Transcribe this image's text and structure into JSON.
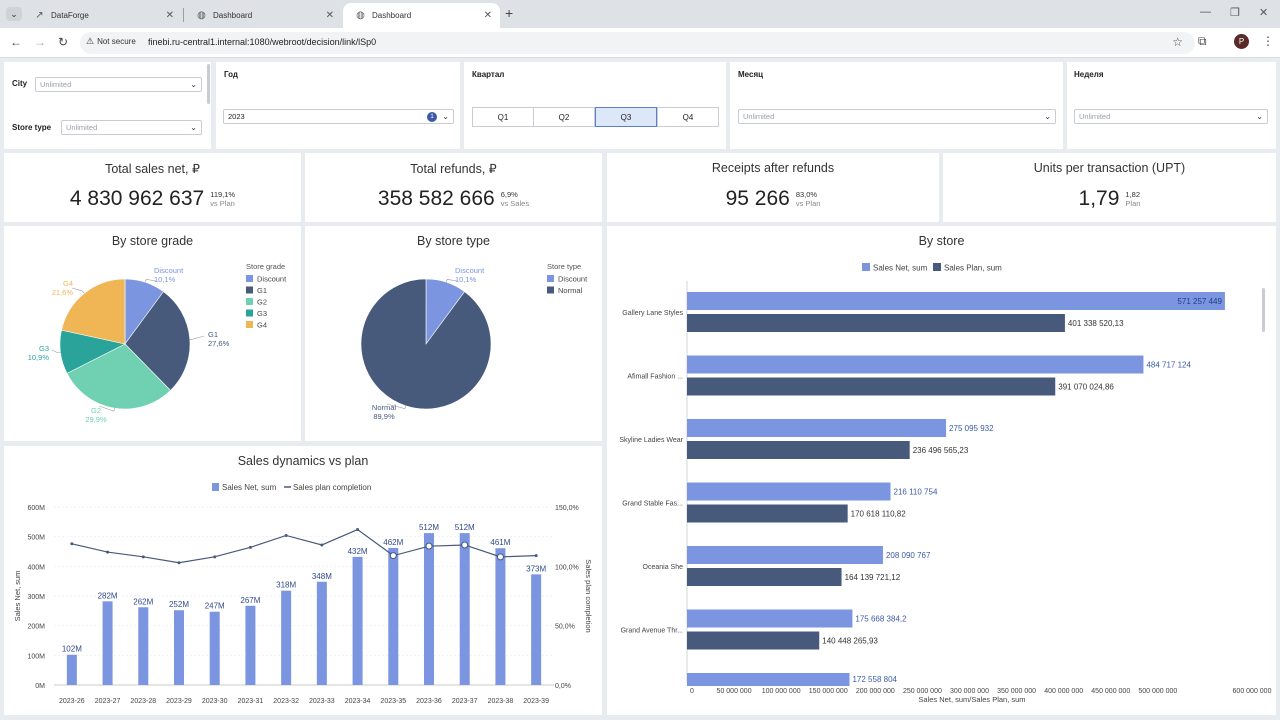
{
  "browser": {
    "tabs": [
      {
        "title": "DataForge"
      },
      {
        "title": "Dashboard"
      },
      {
        "title": "Dashboard"
      }
    ],
    "not_secure": "Not secure",
    "url": "finebi.ru-central1.internal:1080/webroot/decision/link/lSp0",
    "profile_initial": "P"
  },
  "filters": {
    "city": {
      "label": "City",
      "value": "Unlimited"
    },
    "store_type": {
      "label": "Store type",
      "value": "Unlimited"
    },
    "year": {
      "label": "Год",
      "value": "2023",
      "count": "1"
    },
    "quarter": {
      "label": "Квартал",
      "options": [
        "Q1",
        "Q2",
        "Q3",
        "Q4"
      ],
      "selected": "Q3"
    },
    "month": {
      "label": "Месяц",
      "value": "Unlimited"
    },
    "week": {
      "label": "Неделя",
      "value": "Unlimited"
    }
  },
  "kpis": [
    {
      "title": "Total sales net, ₽",
      "value": "4 830 962 637",
      "pct": "119,1%",
      "note": "vs Plan"
    },
    {
      "title": "Total refunds, ₽",
      "value": "358 582 666",
      "pct": "6,9%",
      "note": "vs Sales"
    },
    {
      "title": "Receipts after refunds",
      "value": "95 266",
      "pct": "83,0%",
      "note": "vs Plan"
    },
    {
      "title": "Units per transaction (UPT)",
      "value": "1,79",
      "pct": "1,82",
      "note": "Plan"
    }
  ],
  "colors": {
    "discount": "#7b95e0",
    "g1": "#475a7c",
    "g2": "#6fd0b2",
    "g3": "#2aa39a",
    "g4": "#f0b655",
    "normal": "#475a7c",
    "bar_net": "#7b95e0",
    "bar_plan": "#475a7c"
  },
  "chart_data": [
    {
      "type": "pie",
      "title": "By store grade",
      "legend_title": "Store grade",
      "slices": [
        {
          "name": "Discount",
          "value": 10.1,
          "label": "10,1%"
        },
        {
          "name": "G1",
          "value": 27.6,
          "label": "27,6%"
        },
        {
          "name": "G2",
          "value": 29.9,
          "label": "29,9%"
        },
        {
          "name": "G3",
          "value": 10.9,
          "label": "10,9%"
        },
        {
          "name": "G4",
          "value": 21.6,
          "label": "21,6%"
        }
      ]
    },
    {
      "type": "pie",
      "title": "By store type",
      "legend_title": "Store type",
      "slices": [
        {
          "name": "Discount",
          "value": 10.1,
          "label": "10,1%"
        },
        {
          "name": "Normal",
          "value": 89.9,
          "label": "89,9%"
        }
      ]
    },
    {
      "type": "bar",
      "title": "By store",
      "orientation": "horizontal",
      "xlabel": "Sales Net, sum/Sales Plan, sum",
      "xlim": [
        0,
        600000000
      ],
      "x_ticks": [
        "0",
        "50 000 000",
        "100 000 000",
        "150 000 000",
        "200 000 000",
        "250 000 000",
        "300 000 000",
        "350 000 000",
        "400 000 000",
        "450 000 000",
        "500 000 000",
        "600 000 000"
      ],
      "categories": [
        "Gallery Lane Styles",
        "Afimall Fashion ...",
        "Skyline Ladies Wear",
        "Grand Stable Fas...",
        "Oceania She",
        "Grand Avenue Thr..."
      ],
      "series": [
        {
          "name": "Sales Net, sum",
          "values": [
            571257449,
            484717124,
            275095932,
            216110754,
            208090767,
            175668384.2
          ],
          "labels": [
            "571 257 449",
            "484 717 124",
            "275 095 932",
            "216 110 754",
            "208 090 767",
            "175 668 384,2"
          ]
        },
        {
          "name": "Sales Plan, sum",
          "values": [
            401338520.13,
            391070024.86,
            236496565.23,
            170618110.82,
            164139721.12,
            140448265.93
          ],
          "labels": [
            "401 338 520,13",
            "391 070 024,86",
            "236 496 565,23",
            "170 618 110,82",
            "164 139 721,12",
            "140 448 265,93"
          ]
        }
      ],
      "partial_next": {
        "value": 172558804,
        "label": "172 558 804"
      }
    },
    {
      "type": "bar",
      "title": "Sales dynamics vs plan",
      "ylabel": "Sales Net, sum",
      "y2label": "Sales plan completion",
      "ylim": [
        0,
        600
      ],
      "y_ticks": [
        "0M",
        "100M",
        "200M",
        "300M",
        "400M",
        "500M",
        "600M"
      ],
      "y2lim": [
        0,
        150
      ],
      "y2_ticks": [
        "0,0%",
        "50,0%",
        "100,0%",
        "150,0%"
      ],
      "categories": [
        "2023-26",
        "2023-27",
        "2023-28",
        "2023-29",
        "2023-30",
        "2023-31",
        "2023-32",
        "2023-33",
        "2023-34",
        "2023-35",
        "2023-36",
        "2023-37",
        "2023-38",
        "2023-39"
      ],
      "series": [
        {
          "name": "Sales Net, sum",
          "values": [
            102,
            282,
            262,
            252,
            247,
            267,
            318,
            348,
            432,
            462,
            512,
            512,
            461,
            373
          ],
          "labels": [
            "102M",
            "282M",
            "262M",
            "252M",
            "247M",
            "267M",
            "318M",
            "348M",
            "432M",
            "462M",
            "512M",
            "512M",
            "461M",
            "373M"
          ]
        },
        {
          "name": "Sales plan completion",
          "type": "line",
          "values": [
            119,
            112,
            108,
            103,
            108,
            116,
            126,
            118,
            131,
            109,
            117,
            118,
            108,
            109
          ]
        }
      ]
    }
  ]
}
